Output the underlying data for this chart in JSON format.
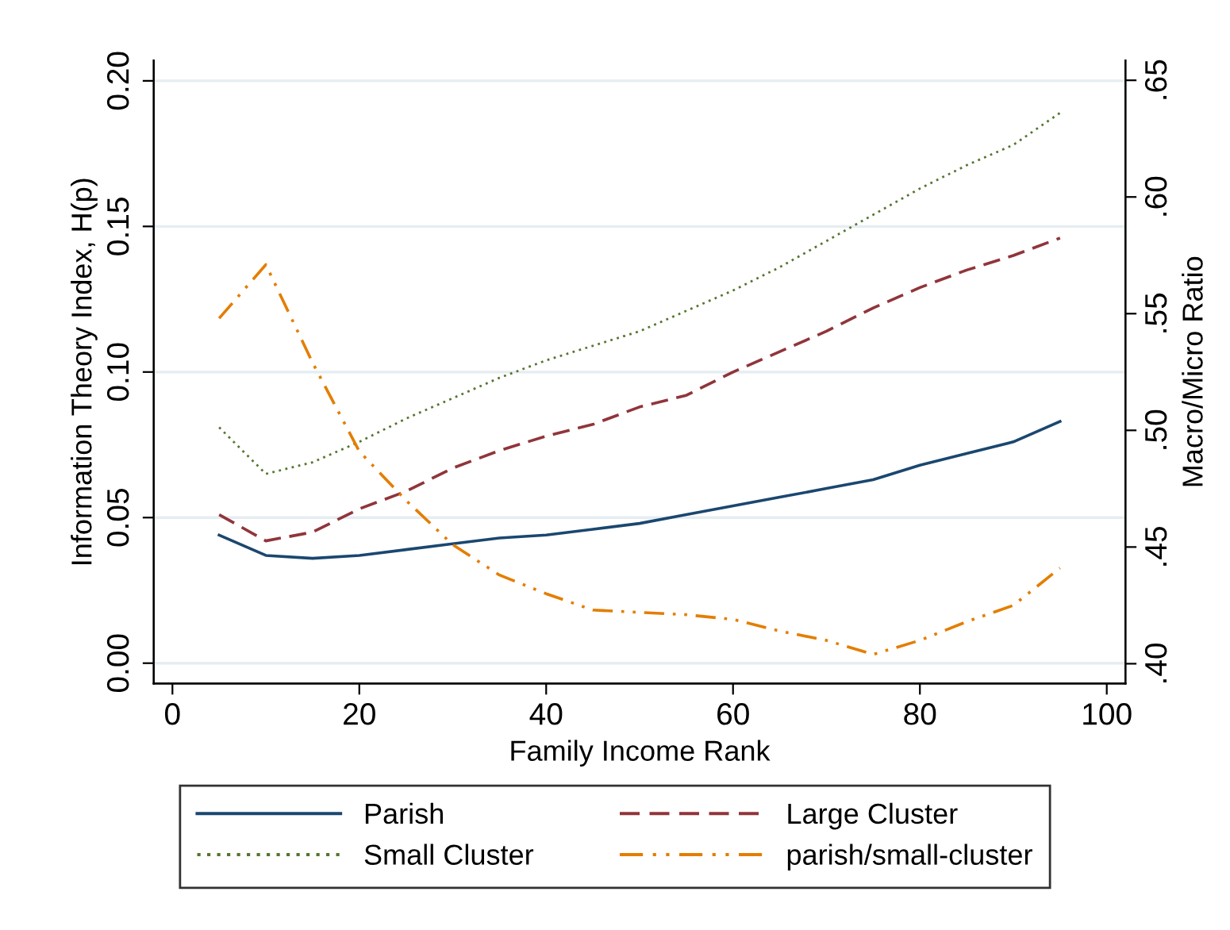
{
  "chart_data": {
    "type": "line",
    "xlabel": "Family Income Rank",
    "ylabel": "Information Theory Index, H(p)",
    "y2label": "Macro/Micro Ratio",
    "x": [
      5,
      10,
      15,
      20,
      25,
      30,
      35,
      40,
      45,
      50,
      55,
      60,
      65,
      70,
      75,
      80,
      85,
      90,
      95
    ],
    "series": [
      {
        "name": "Parish",
        "color": "#1a476f",
        "line_style": "solid",
        "values": [
          0.044,
          0.037,
          0.036,
          0.037,
          0.039,
          0.041,
          0.043,
          0.044,
          0.046,
          0.048,
          0.051,
          0.054,
          0.057,
          0.06,
          0.063,
          0.068,
          0.072,
          0.076,
          0.083
        ]
      },
      {
        "name": "Large Cluster",
        "color": "#90353b",
        "line_style": "dashed",
        "values": [
          0.051,
          0.042,
          0.045,
          0.053,
          0.059,
          0.067,
          0.073,
          0.078,
          0.082,
          0.088,
          0.092,
          0.1,
          0.107,
          0.114,
          0.122,
          0.129,
          0.135,
          0.14,
          0.146
        ]
      },
      {
        "name": "Small Cluster",
        "color": "#55752f",
        "line_style": "dotted",
        "values": [
          0.081,
          0.065,
          0.069,
          0.076,
          0.084,
          0.091,
          0.098,
          0.104,
          0.109,
          0.114,
          0.121,
          0.128,
          0.136,
          0.145,
          0.154,
          0.163,
          0.171,
          0.178,
          0.189
        ]
      },
      {
        "name": "parish/small-cluster",
        "color": "#e37e00",
        "line_style": "dashdot",
        "axis": "y2",
        "values": [
          0.548,
          0.571,
          0.529,
          0.491,
          0.47,
          0.451,
          0.438,
          0.43,
          0.423,
          0.422,
          0.421,
          0.419,
          0.414,
          0.41,
          0.404,
          0.41,
          0.418,
          0.425,
          0.441
        ]
      }
    ],
    "xlim": [
      -2,
      102
    ],
    "xticks": [
      0,
      20,
      40,
      60,
      80,
      100
    ],
    "ylim": [
      -0.007,
      0.207
    ],
    "yticks": [
      {
        "value": 0,
        "label": "0.00"
      },
      {
        "value": 0.05,
        "label": "0.05"
      },
      {
        "value": 0.1,
        "label": "0.10"
      },
      {
        "value": 0.15,
        "label": "0.15"
      },
      {
        "value": 0.2,
        "label": "0.20"
      }
    ],
    "y2lim": [
      0.3915,
      0.6585
    ],
    "y2ticks": [
      {
        "value": 0.4,
        "label": ".40"
      },
      {
        "value": 0.45,
        "label": ".45"
      },
      {
        "value": 0.5,
        "label": ".50"
      },
      {
        "value": 0.55,
        "label": ".55"
      },
      {
        "value": 0.6,
        "label": ".60"
      },
      {
        "value": 0.65,
        "label": ".65"
      }
    ],
    "grid": "y",
    "legend": "bottom"
  }
}
